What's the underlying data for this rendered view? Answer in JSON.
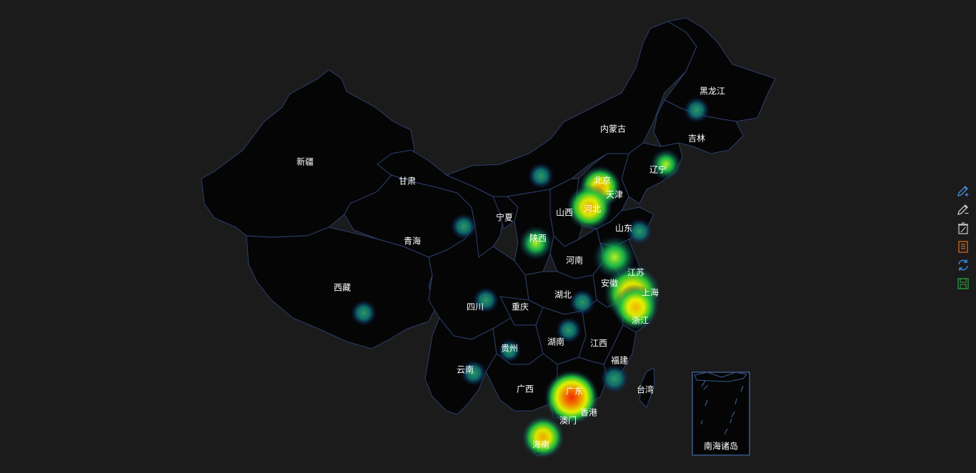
{
  "map": {
    "provinces": [
      {
        "key": "xinjiang",
        "name": "新疆"
      },
      {
        "key": "xizang",
        "name": "西藏"
      },
      {
        "key": "qinghai",
        "name": "青海"
      },
      {
        "key": "gansu",
        "name": "甘肃"
      },
      {
        "key": "neimenggu",
        "name": "内蒙古"
      },
      {
        "key": "heilongjiang",
        "name": "黑龙江"
      },
      {
        "key": "jilin",
        "name": "吉林"
      },
      {
        "key": "liaoning",
        "name": "辽宁"
      },
      {
        "key": "beijing",
        "name": "北京"
      },
      {
        "key": "tianjin",
        "name": "天津"
      },
      {
        "key": "hebei",
        "name": "河北"
      },
      {
        "key": "shanxi",
        "name": "山西"
      },
      {
        "key": "ningxia",
        "name": "宁夏"
      },
      {
        "key": "shaanxi",
        "name": "陕西"
      },
      {
        "key": "shandong",
        "name": "山东"
      },
      {
        "key": "henan",
        "name": "河南"
      },
      {
        "key": "jiangsu",
        "name": "江苏"
      },
      {
        "key": "anhui",
        "name": "安徽"
      },
      {
        "key": "shanghai",
        "name": "上海"
      },
      {
        "key": "zhejiang",
        "name": "浙江"
      },
      {
        "key": "hubei",
        "name": "湖北"
      },
      {
        "key": "sichuan",
        "name": "四川"
      },
      {
        "key": "chongqing",
        "name": "重庆"
      },
      {
        "key": "hunan",
        "name": "湖南"
      },
      {
        "key": "jiangxi",
        "name": "江西"
      },
      {
        "key": "guizhou",
        "name": "贵州"
      },
      {
        "key": "yunnan",
        "name": "云南"
      },
      {
        "key": "guangxi",
        "name": "广西"
      },
      {
        "key": "guangdong",
        "name": "广东"
      },
      {
        "key": "fujian",
        "name": "福建"
      },
      {
        "key": "taiwan",
        "name": "台湾"
      },
      {
        "key": "hongkong",
        "name": "香港"
      },
      {
        "key": "macau",
        "name": "澳门"
      },
      {
        "key": "hainan",
        "name": "海南"
      },
      {
        "key": "nanhai",
        "name": "南海诸岛"
      }
    ],
    "heat_points": [
      {
        "province": "guangdong",
        "intensity": 1.0
      },
      {
        "province": "shanghai",
        "intensity": 0.85
      },
      {
        "province": "zhejiang",
        "intensity": 0.7
      },
      {
        "province": "jiangsu",
        "intensity": 0.55
      },
      {
        "province": "beijing",
        "intensity": 0.75
      },
      {
        "province": "hebei",
        "intensity": 0.7
      },
      {
        "province": "hainan",
        "intensity": 0.65
      },
      {
        "province": "liaoning",
        "intensity": 0.45
      },
      {
        "province": "shaanxi",
        "intensity": 0.4
      },
      {
        "province": "shandong",
        "intensity": 0.35
      },
      {
        "province": "fujian",
        "intensity": 0.35
      },
      {
        "province": "heilongjiang",
        "intensity": 0.3
      },
      {
        "province": "xizang",
        "intensity": 0.3
      },
      {
        "province": "sichuan",
        "intensity": 0.3
      },
      {
        "province": "yunnan",
        "intensity": 0.3
      },
      {
        "province": "guizhou",
        "intensity": 0.3
      },
      {
        "province": "hubei",
        "intensity": 0.3
      },
      {
        "province": "hunan",
        "intensity": 0.3
      },
      {
        "province": "qinghai",
        "intensity": 0.3
      },
      {
        "province": "neimenggu",
        "intensity": 0.3
      }
    ],
    "colors": {
      "land": "#050505",
      "border": "#2c3f6e",
      "label": "#ffffff",
      "background": "#1b1b1b"
    }
  },
  "toolbox": [
    {
      "name": "draw-icon",
      "color": "#4a90d9"
    },
    {
      "name": "erase-icon",
      "color": "#cccccc"
    },
    {
      "name": "clear-icon",
      "color": "#cccccc"
    },
    {
      "name": "data-view-icon",
      "color": "#d2691e"
    },
    {
      "name": "restore-icon",
      "color": "#3a8ee6"
    },
    {
      "name": "save-image-icon",
      "color": "#2e9a3e"
    }
  ]
}
